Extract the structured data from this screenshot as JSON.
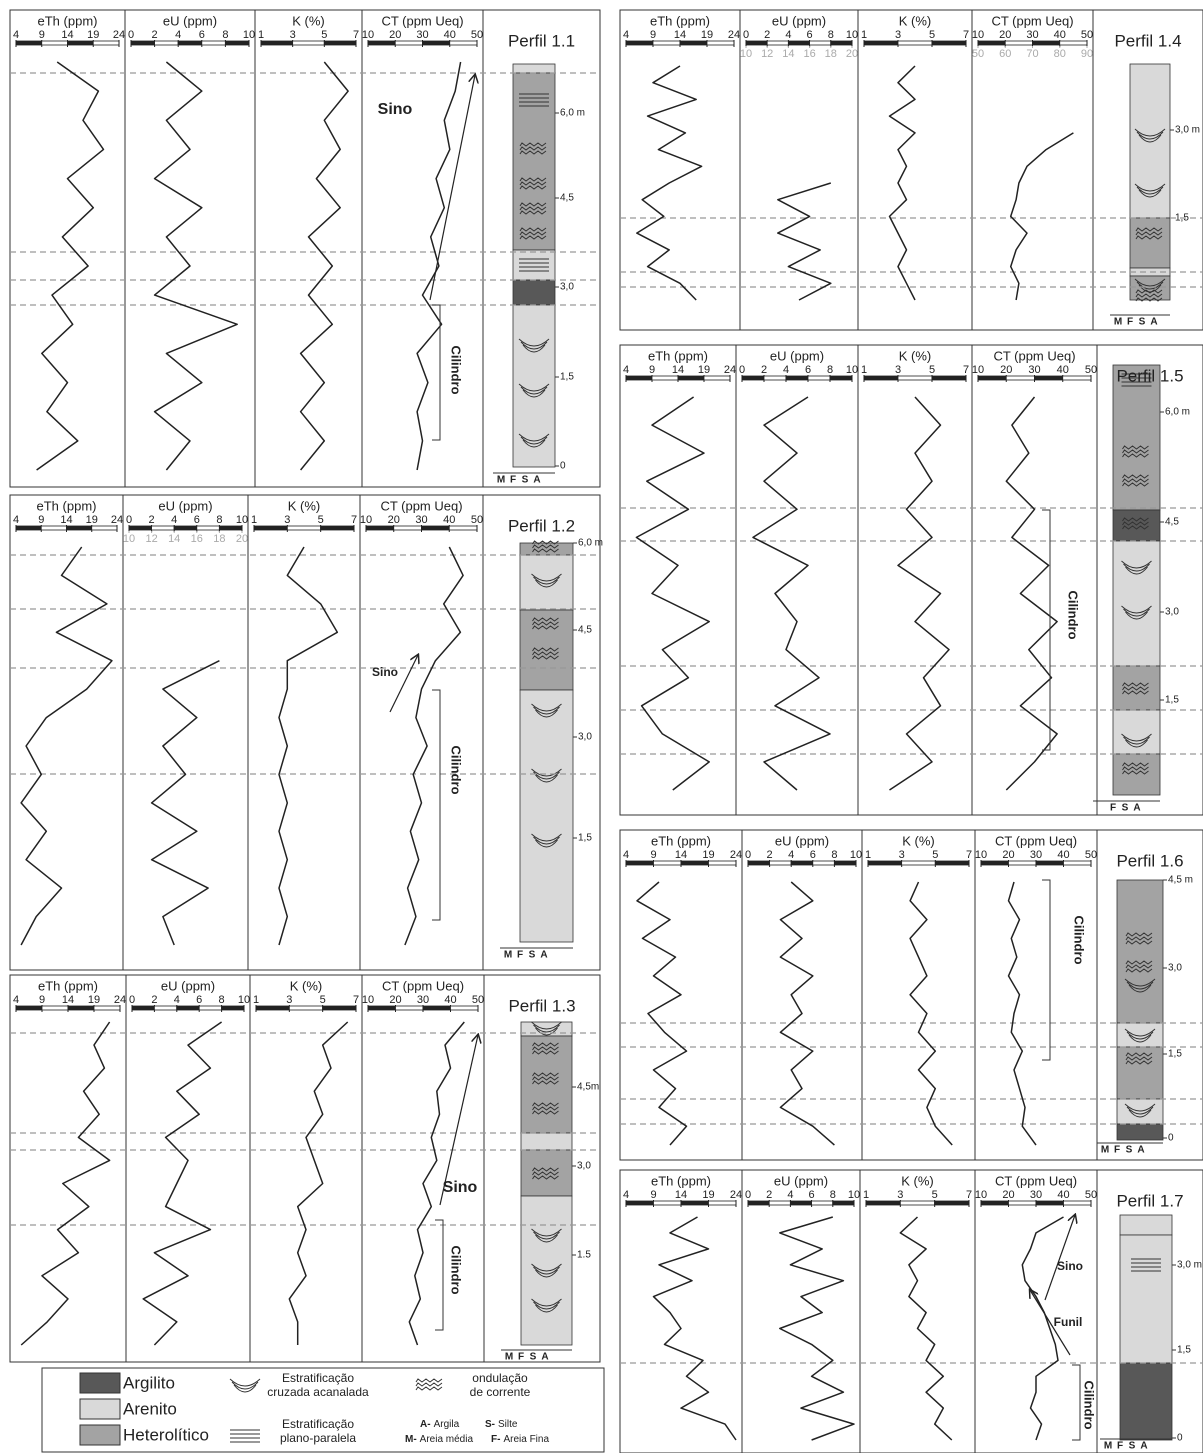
{
  "panels": [
    {
      "title": "Perfil 1.1",
      "tracks": [
        {
          "label": "eTh (ppm)",
          "xlim": [
            4,
            24
          ],
          "xticks": [
            4,
            9,
            14,
            19,
            24
          ],
          "values": [
            12,
            20,
            17,
            21,
            14,
            19,
            13,
            18,
            11,
            15,
            9,
            14,
            10,
            16,
            8
          ]
        },
        {
          "label": "eU (ppm)",
          "xlim": [
            0,
            10
          ],
          "xticks": [
            0,
            2,
            4,
            6,
            8,
            10
          ],
          "values": [
            3,
            6,
            3,
            5,
            2,
            6,
            3,
            5,
            2,
            9,
            3,
            6,
            2,
            5,
            3
          ]
        },
        {
          "label": "K (%)",
          "xlim": [
            1,
            7
          ],
          "xticks": [
            1,
            3,
            5,
            7
          ],
          "values": [
            5,
            6.5,
            5,
            6,
            4.5,
            6,
            4,
            5.5,
            4,
            5.5,
            3.5,
            5,
            3.5,
            5,
            3.5
          ]
        },
        {
          "label": "CT (ppm Ueq)",
          "xlim": [
            10,
            50
          ],
          "xticks": [
            10,
            20,
            30,
            40,
            50
          ],
          "values": [
            44,
            42,
            38,
            40,
            35,
            38,
            33,
            36,
            30,
            37,
            28,
            32,
            28,
            30,
            28
          ]
        }
      ],
      "depths": [
        "6,0 m",
        "4,5",
        "3,0",
        "1,5",
        "0"
      ],
      "grains": [
        "M",
        "F",
        "S",
        "A"
      ],
      "annotations": [
        "Sino",
        "Cilindro"
      ]
    },
    {
      "title": "Perfil 1.2",
      "tracks": [
        {
          "label": "eTh (ppm)",
          "xlim": [
            4,
            24
          ],
          "xticks": [
            4,
            9,
            14,
            19,
            24
          ],
          "values": [
            17,
            13,
            22,
            12,
            23,
            18,
            10,
            6,
            9,
            5,
            10,
            6,
            13,
            8,
            5
          ]
        },
        {
          "label": "eU (ppm)",
          "xlim": [
            0,
            10
          ],
          "xticks": [
            0,
            2,
            4,
            6,
            8,
            10
          ],
          "xlim2": [
            10,
            20
          ],
          "xticks2": [
            10,
            12,
            14,
            16,
            18,
            20
          ],
          "color2": "#aaaaaa",
          "values": [
            null,
            null,
            null,
            null,
            8,
            3,
            6,
            3,
            5,
            2,
            6,
            2,
            7,
            3,
            4
          ]
        },
        {
          "label": "K (%)",
          "xlim": [
            1,
            7
          ],
          "xticks": [
            1,
            3,
            5,
            7
          ],
          "values": [
            4,
            3,
            5,
            6,
            3,
            3,
            2.5,
            3,
            2.5,
            3,
            2.5,
            3,
            2.5,
            3,
            2.5
          ]
        },
        {
          "label": "CT (ppm Ueq)",
          "xlim": [
            10,
            50
          ],
          "xticks": [
            10,
            20,
            30,
            40,
            50
          ],
          "values": [
            40,
            45,
            38,
            44,
            35,
            30,
            28,
            32,
            27,
            30,
            26,
            29,
            25,
            28,
            24
          ]
        }
      ],
      "depths": [
        "6,0 m",
        "4,5",
        "3,0",
        "1,5"
      ],
      "grains": [
        "M",
        "F",
        "S",
        "A"
      ],
      "annotations": [
        "Sino",
        "Cilindro"
      ]
    },
    {
      "title": "Perfil 1.3",
      "tracks": [
        {
          "label": "eTh (ppm)",
          "xlim": [
            4,
            24
          ],
          "xticks": [
            4,
            9,
            14,
            19,
            24
          ],
          "values": [
            22,
            19,
            21,
            17,
            20,
            16,
            22,
            13,
            18,
            12,
            16,
            9,
            14,
            10,
            5
          ]
        },
        {
          "label": "eU (ppm)",
          "xlim": [
            0,
            10
          ],
          "xticks": [
            0,
            2,
            4,
            6,
            8,
            10
          ],
          "values": [
            8,
            5,
            7,
            4,
            6,
            3,
            5,
            4,
            3,
            7,
            2,
            5,
            1,
            4,
            2
          ]
        },
        {
          "label": "K (%)",
          "xlim": [
            1,
            7
          ],
          "xticks": [
            1,
            3,
            5,
            7
          ],
          "values": [
            6.5,
            5,
            5.5,
            4.5,
            5,
            4,
            4.5,
            5,
            3.5,
            4,
            3.5,
            4,
            3,
            3.5,
            3.5
          ]
        },
        {
          "label": "CT (ppm Ueq)",
          "xlim": [
            10,
            50
          ],
          "xticks": [
            10,
            20,
            30,
            40,
            50
          ],
          "values": [
            45,
            38,
            40,
            35,
            36,
            33,
            35,
            30,
            33,
            28,
            30,
            27,
            29,
            25,
            28
          ]
        }
      ],
      "depths": [
        "4,5m",
        "3,0",
        "1.5"
      ],
      "grains": [
        "M",
        "F",
        "S",
        "A"
      ],
      "annotations": [
        "Sino",
        "Cilindro"
      ]
    },
    {
      "title": "Perfil 1.4",
      "tracks": [
        {
          "label": "eTh (ppm)",
          "xlim": [
            4,
            24
          ],
          "xticks": [
            4,
            9,
            14,
            19,
            24
          ],
          "values": [
            14,
            9,
            17,
            8,
            15,
            10,
            18,
            12,
            7,
            11,
            6,
            12,
            8,
            14,
            17
          ]
        },
        {
          "label": "eU (ppm)",
          "xlim": [
            0,
            10
          ],
          "xticks": [
            0,
            2,
            4,
            6,
            8,
            10
          ],
          "xlim2": [
            10,
            20
          ],
          "xticks2": [
            10,
            12,
            14,
            16,
            18,
            20
          ],
          "color2": "#aaaaaa",
          "values": [
            null,
            null,
            null,
            null,
            null,
            null,
            null,
            8,
            3,
            6,
            3,
            7,
            4,
            8,
            5
          ]
        },
        {
          "label": "K (%)",
          "xlim": [
            1,
            7
          ],
          "xticks": [
            1,
            3,
            5,
            7
          ],
          "values": [
            4,
            3,
            4,
            2.5,
            4,
            3,
            3.5,
            3,
            3.5,
            2.5,
            3,
            3.5,
            3,
            3.5,
            4
          ]
        },
        {
          "label": "CT (ppm Ueq)",
          "xlim": [
            10,
            50
          ],
          "xticks": [
            10,
            20,
            30,
            40,
            50
          ],
          "xlim2": [
            50,
            90
          ],
          "xticks2": [
            50,
            60,
            70,
            80,
            90
          ],
          "color2": "#aaaaaa",
          "values": [
            null,
            null,
            null,
            null,
            45,
            35,
            28,
            25,
            24,
            22,
            28,
            24,
            22,
            25,
            24
          ]
        }
      ],
      "depths": [
        "3,0 m",
        "1,5"
      ],
      "grains": [
        "M",
        "F",
        "S",
        "A"
      ],
      "annotations": []
    },
    {
      "title": "Perfil 1.5",
      "tracks": [
        {
          "label": "eTh (ppm)",
          "xlim": [
            4,
            24
          ],
          "xticks": [
            4,
            9,
            14,
            19,
            24
          ],
          "values": [
            17,
            9,
            19,
            8,
            16,
            6,
            14,
            9,
            20,
            11,
            16,
            7,
            11,
            20,
            13
          ]
        },
        {
          "label": "eU (ppm)",
          "xlim": [
            0,
            10
          ],
          "xticks": [
            0,
            2,
            4,
            6,
            8,
            10
          ],
          "values": [
            6,
            2,
            5,
            2,
            5,
            1,
            6,
            3,
            5,
            4,
            7,
            3,
            8,
            2,
            5
          ]
        },
        {
          "label": "K (%)",
          "xlim": [
            1,
            7
          ],
          "xticks": [
            1,
            3,
            5,
            7
          ],
          "values": [
            4,
            5.5,
            4,
            5,
            3.5,
            5,
            3,
            5.5,
            4,
            6,
            4.5,
            5.5,
            3.5,
            5,
            2.5
          ]
        },
        {
          "label": "CT (ppm Ueq)",
          "xlim": [
            10,
            50
          ],
          "xticks": [
            10,
            20,
            30,
            40,
            50
          ],
          "values": [
            30,
            22,
            28,
            20,
            30,
            22,
            35,
            25,
            38,
            28,
            36,
            25,
            38,
            30,
            20
          ]
        }
      ],
      "depths": [
        "6,0 m",
        "4,5",
        "3,0",
        "1,5"
      ],
      "grains": [
        "F",
        "S",
        "A"
      ],
      "annotations": [
        "Cilindro"
      ]
    },
    {
      "title": "Perfil 1.6",
      "tracks": [
        {
          "label": "eTh (ppm)",
          "xlim": [
            4,
            24
          ],
          "xticks": [
            4,
            9,
            14,
            19,
            24
          ],
          "values": [
            10,
            6,
            12,
            7,
            13,
            9,
            14,
            8,
            11,
            15,
            9,
            13,
            10,
            15,
            12
          ]
        },
        {
          "label": "eU (ppm)",
          "xlim": [
            0,
            10
          ],
          "xticks": [
            0,
            2,
            4,
            6,
            8,
            10
          ],
          "values": [
            4,
            6,
            3,
            5,
            3,
            6,
            4,
            5,
            3,
            6,
            4,
            5,
            3,
            6,
            8
          ]
        },
        {
          "label": "K (%)",
          "xlim": [
            1,
            7
          ],
          "xticks": [
            1,
            3,
            5,
            7
          ],
          "values": [
            4,
            3.5,
            4.5,
            3.5,
            4,
            4.5,
            3.5,
            4.5,
            4,
            5,
            4,
            5,
            4.5,
            5,
            6
          ]
        },
        {
          "label": "CT (ppm Ueq)",
          "xlim": [
            10,
            50
          ],
          "xticks": [
            10,
            20,
            30,
            40,
            50
          ],
          "values": [
            22,
            20,
            24,
            21,
            23,
            20,
            24,
            22,
            21,
            25,
            22,
            24,
            26,
            25,
            30
          ]
        }
      ],
      "depths": [
        "4,5 m",
        "3,0",
        "1,5",
        "0"
      ],
      "grains": [
        "M",
        "F",
        "S",
        "A"
      ],
      "annotations": [
        "Cilindro"
      ]
    },
    {
      "title": "Perfil 1.7",
      "tracks": [
        {
          "label": "eTh (ppm)",
          "xlim": [
            4,
            24
          ],
          "xticks": [
            4,
            9,
            14,
            19,
            24
          ],
          "values": [
            17,
            12,
            19,
            10,
            16,
            9,
            12,
            14,
            11,
            18,
            15,
            19,
            14,
            22,
            24
          ]
        },
        {
          "label": "eU (ppm)",
          "xlim": [
            0,
            10
          ],
          "xticks": [
            0,
            2,
            4,
            6,
            8,
            10
          ],
          "values": [
            8,
            3,
            7,
            4,
            9,
            5,
            7,
            3,
            6,
            8,
            6,
            9,
            5,
            10,
            6
          ]
        },
        {
          "label": "K (%)",
          "xlim": [
            1,
            7
          ],
          "xticks": [
            1,
            3,
            5,
            7
          ],
          "values": [
            4,
            3,
            4.5,
            3.5,
            4,
            3.5,
            4.5,
            4,
            5,
            4.5,
            5.5,
            4.5,
            5.5,
            5,
            6
          ]
        },
        {
          "label": "CT (ppm Ueq)",
          "xlim": [
            10,
            50
          ],
          "xticks": [
            10,
            20,
            30,
            40,
            50
          ],
          "values": [
            40,
            30,
            28,
            25,
            26,
            30,
            33,
            35,
            37,
            38,
            30,
            30,
            28,
            32,
            30
          ]
        }
      ],
      "depths": [
        "3,0 m",
        "1,5",
        "0"
      ],
      "grains": [
        "M",
        "F",
        "S",
        "A"
      ],
      "annotations": [
        "Sino",
        "Funil",
        "Cilindro"
      ]
    }
  ],
  "legend": {
    "lithology": [
      "Argilito",
      "Arenito",
      "Heterolítico"
    ],
    "cross": [
      "Estratificação",
      "cruzada acanalada"
    ],
    "ripple": [
      "ondulação",
      "de corrente"
    ],
    "planar": [
      "Estratificação",
      "plano-paralela"
    ],
    "grain_codes": [
      {
        "key": "A-",
        "text": "Argila"
      },
      {
        "key": "S-",
        "text": "Silte"
      },
      {
        "key": "M-",
        "text": "Areia média"
      },
      {
        "key": "F-",
        "text": "Areia Fina"
      }
    ]
  }
}
